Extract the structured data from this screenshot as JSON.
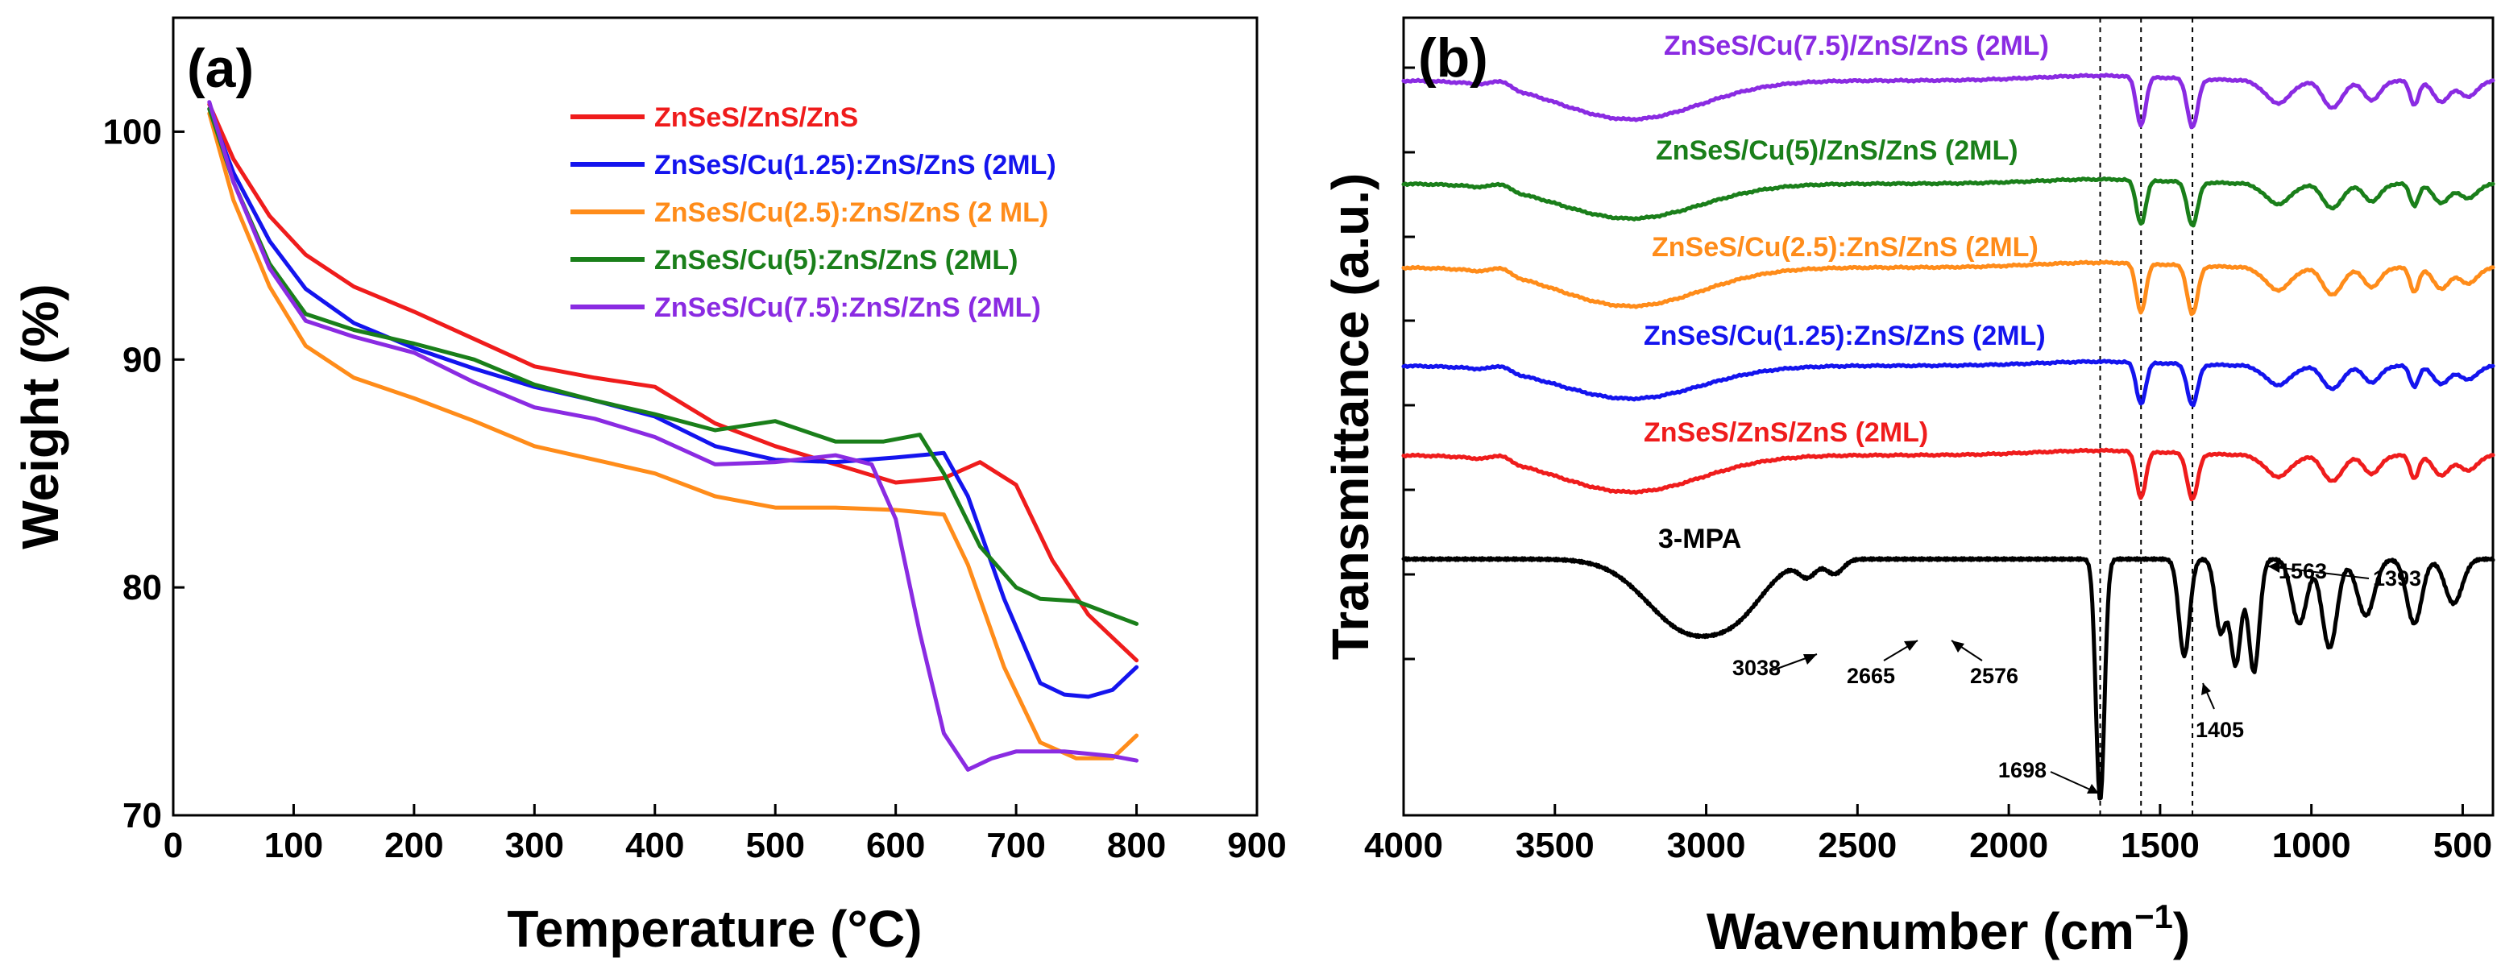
{
  "colors": {
    "red": "#ef1c1c",
    "blue": "#1414ee",
    "orange": "#ff8c1a",
    "green": "#1a7f1a",
    "purple": "#8a2be2",
    "black": "#000000"
  },
  "chart_data": [
    {
      "type": "line",
      "panel_label": "(a)",
      "xlabel": "Temperature (°C)",
      "ylabel": "Weight (%)",
      "xlim": [
        0,
        900
      ],
      "ylim": [
        70,
        105
      ],
      "xticks": [
        0,
        100,
        200,
        300,
        400,
        500,
        600,
        700,
        800,
        900
      ],
      "yticks": [
        70,
        80,
        90,
        100
      ],
      "legend_position": "top-right",
      "series": [
        {
          "name": "ZnSeS/ZnS/ZnS",
          "color": "#ef1c1c",
          "x": [
            30,
            50,
            80,
            110,
            150,
            200,
            250,
            300,
            350,
            400,
            450,
            500,
            550,
            600,
            640,
            670,
            700,
            730,
            760,
            800
          ],
          "y": [
            101.2,
            98.8,
            96.3,
            94.6,
            93.2,
            92.1,
            90.9,
            89.7,
            89.2,
            88.8,
            87.2,
            86.2,
            85.4,
            84.6,
            84.8,
            85.5,
            84.5,
            81.2,
            78.8,
            76.8
          ]
        },
        {
          "name": "ZnSeS/Cu(1.25):ZnS/ZnS (2ML)",
          "color": "#1414ee",
          "x": [
            30,
            50,
            80,
            110,
            150,
            200,
            250,
            300,
            350,
            400,
            450,
            500,
            550,
            600,
            640,
            660,
            690,
            720,
            740,
            760,
            780,
            800
          ],
          "y": [
            101.0,
            98.2,
            95.2,
            93.1,
            91.6,
            90.5,
            89.6,
            88.8,
            88.2,
            87.5,
            86.2,
            85.6,
            85.5,
            85.7,
            85.9,
            84.0,
            79.5,
            75.8,
            75.3,
            75.2,
            75.5,
            76.5
          ]
        },
        {
          "name": "ZnSeS/Cu(2.5):ZnS/ZnS (2 ML)",
          "color": "#ff8c1a",
          "x": [
            30,
            50,
            80,
            110,
            150,
            200,
            250,
            300,
            350,
            400,
            450,
            500,
            550,
            600,
            640,
            660,
            690,
            720,
            750,
            780,
            800
          ],
          "y": [
            100.8,
            97.0,
            93.2,
            90.6,
            89.2,
            88.3,
            87.3,
            86.2,
            85.6,
            85.0,
            84.0,
            83.5,
            83.5,
            83.4,
            83.2,
            81.0,
            76.5,
            73.2,
            72.5,
            72.5,
            73.5
          ]
        },
        {
          "name": "ZnSeS/Cu(5):ZnS/ZnS (2ML)",
          "color": "#1a7f1a",
          "x": [
            30,
            50,
            80,
            110,
            150,
            200,
            250,
            300,
            350,
            400,
            450,
            500,
            550,
            590,
            620,
            640,
            670,
            700,
            720,
            750,
            780,
            800
          ],
          "y": [
            101.0,
            97.8,
            94.2,
            92.0,
            91.3,
            90.7,
            90.0,
            88.9,
            88.2,
            87.6,
            86.9,
            87.3,
            86.4,
            86.4,
            86.7,
            85.0,
            81.8,
            80.0,
            79.5,
            79.4,
            78.8,
            78.4
          ]
        },
        {
          "name": "ZnSeS/Cu(7.5):ZnS/ZnS (2ML)",
          "color": "#8a2be2",
          "x": [
            30,
            50,
            80,
            110,
            150,
            200,
            250,
            300,
            350,
            400,
            450,
            500,
            550,
            580,
            600,
            620,
            640,
            660,
            680,
            700,
            740,
            780,
            800
          ],
          "y": [
            101.3,
            97.8,
            94.0,
            91.7,
            91.0,
            90.3,
            89.0,
            87.9,
            87.4,
            86.6,
            85.4,
            85.5,
            85.8,
            85.4,
            83.0,
            78.0,
            73.6,
            72.0,
            72.5,
            72.8,
            72.8,
            72.6,
            72.4
          ]
        }
      ]
    },
    {
      "type": "line",
      "panel_label": "(b)",
      "xlabel": "Wavenumber (cm",
      "xlabel_superscript": "−1",
      "xlabel_close": ")",
      "ylabel": "Transmittance (a.u.)",
      "xlim": [
        4000,
        400
      ],
      "xticks": [
        4000,
        3500,
        3000,
        2500,
        2000,
        1500,
        1000,
        500
      ],
      "y_units": "arbitrary, offset traces",
      "reference_lines_cm-1": [
        1698,
        1563,
        1393
      ],
      "series": [
        {
          "name": "ZnSeS/Cu(7.5)/ZnS/ZnS (2ML)",
          "color": "#8a2be2"
        },
        {
          "name": "ZnSeS/Cu(5)/ZnS/ZnS (2ML)",
          "color": "#1a7f1a"
        },
        {
          "name": "ZnSeS/Cu(2.5):ZnS/ZnS (2ML)",
          "color": "#ff8c1a"
        },
        {
          "name": "ZnSeS/Cu(1.25):ZnS/ZnS (2ML)",
          "color": "#1414ee"
        },
        {
          "name": "ZnSeS/ZnS/ZnS (2ML)",
          "color": "#ef1c1c"
        },
        {
          "name": "3-MPA",
          "color": "#000000"
        }
      ],
      "peak_annotations": [
        "1563",
        "1393",
        "3038",
        "2665",
        "2576",
        "1698",
        "1405"
      ]
    }
  ]
}
